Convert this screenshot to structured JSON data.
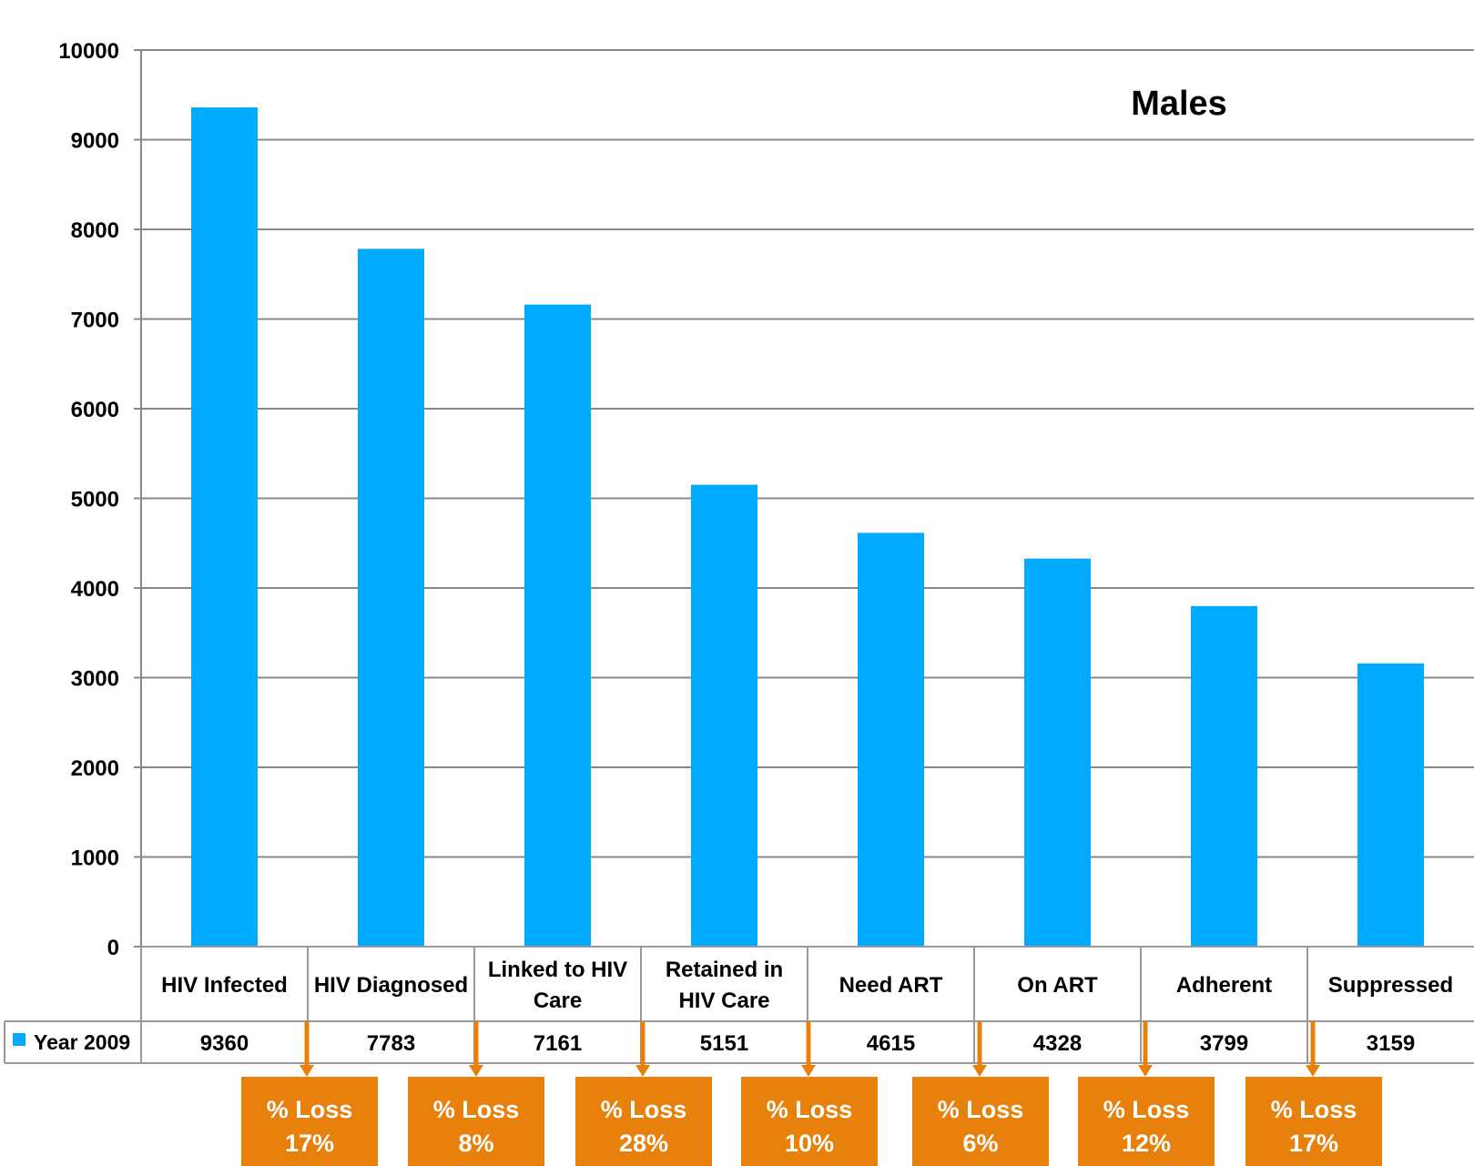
{
  "chart_data": {
    "type": "bar",
    "title": "Males",
    "categories": [
      [
        "HIV Infected"
      ],
      [
        "HIV Diagnosed"
      ],
      [
        "Linked to HIV",
        "Care"
      ],
      [
        "Retained in",
        "HIV Care"
      ],
      [
        "Need ART"
      ],
      [
        "On ART"
      ],
      [
        "Adherent"
      ],
      [
        "Suppressed"
      ]
    ],
    "series": [
      {
        "name": "Year 2009",
        "color": "#00aaff",
        "values": [
          9360,
          7783,
          7161,
          5151,
          4615,
          4328,
          3799,
          3159
        ]
      }
    ],
    "value_labels": [
      "9360",
      "7783",
      "7161",
      "5151",
      "4615",
      "4328",
      "3799",
      "3159"
    ],
    "ylim": [
      0,
      10000
    ],
    "yticks": [
      0,
      1000,
      2000,
      3000,
      4000,
      5000,
      6000,
      7000,
      8000,
      9000,
      10000
    ],
    "grid": true,
    "legend": "data-table",
    "loss_annotations": [
      {
        "label": "% Loss",
        "value": "17%"
      },
      {
        "label": "% Loss",
        "value": "8%"
      },
      {
        "label": "% Loss",
        "value": "28%"
      },
      {
        "label": "% Loss",
        "value": "10%"
      },
      {
        "label": "% Loss",
        "value": "6%"
      },
      {
        "label": "% Loss",
        "value": "12%"
      },
      {
        "label": "% Loss",
        "value": "17%"
      }
    ]
  },
  "colors": {
    "bar": "#00aaff",
    "annotation": "#e8800c",
    "grid": "#888888"
  }
}
